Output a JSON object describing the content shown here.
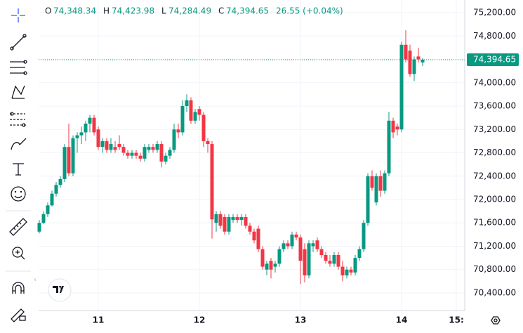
{
  "chart_data": {
    "type": "candlestick",
    "header": {
      "o": "O",
      "open": "74,348.34",
      "h": "H",
      "high": "74,423.98",
      "l": "L",
      "low": "74,284.49",
      "c": "C",
      "close": "74,394.65",
      "change": "26.55 (+0.04%)"
    },
    "categories": [
      null,
      null,
      null,
      null,
      null,
      null,
      null,
      null,
      null,
      null,
      null,
      null,
      null,
      null,
      "11",
      null,
      null,
      null,
      null,
      null,
      null,
      null,
      null,
      null,
      null,
      null,
      null,
      null,
      null,
      null,
      null,
      null,
      null,
      null,
      null,
      null,
      null,
      null,
      "12",
      null,
      null,
      null,
      null,
      null,
      null,
      null,
      null,
      null,
      null,
      null,
      null,
      null,
      null,
      null,
      null,
      null,
      null,
      null,
      null,
      null,
      null,
      null,
      "13",
      null,
      null,
      null,
      null,
      null,
      null,
      null,
      null,
      null,
      null,
      null,
      null,
      null,
      null,
      null,
      null,
      null,
      null,
      null,
      null,
      null,
      null,
      null,
      "14",
      null,
      null,
      null,
      null,
      null,
      null,
      null,
      null,
      null,
      null,
      null,
      null,
      "15:"
    ],
    "open": [
      71450,
      71600,
      71750,
      71900,
      72100,
      72250,
      72350,
      72900,
      72450,
      73050,
      73100,
      73150,
      73300,
      73400,
      73200,
      72900,
      73000,
      72850,
      72900,
      72950,
      72900,
      72800,
      72750,
      72800,
      72750,
      72700,
      72850,
      72900,
      72850,
      72950,
      72650,
      72750,
      72850,
      73200,
      73150,
      73600,
      73700,
      73350,
      73550,
      73450,
      73000,
      72950,
      71600,
      71750,
      71700,
      71450,
      71650,
      71700,
      71650,
      71700,
      71550,
      71450,
      71500,
      71150,
      70800,
      70950,
      70850,
      70900,
      71150,
      71250,
      71200,
      71400,
      71350,
      71150,
      70700,
      71200,
      71300,
      71150,
      71050,
      70950,
      70900,
      71050,
      70850,
      70700,
      70800,
      70750,
      71000,
      71150,
      71600,
      72400,
      71950,
      72400,
      72150,
      72450,
      73350,
      73250,
      73200,
      74650,
      74550,
      74150,
      74450,
      74348.34,
      null,
      null,
      null,
      null,
      null,
      null,
      null,
      null
    ],
    "high": [
      71650,
      71800,
      71950,
      72150,
      72300,
      72400,
      72950,
      73300,
      73100,
      73150,
      73250,
      73350,
      73450,
      73450,
      73250,
      73050,
      73050,
      73050,
      73000,
      73100,
      72950,
      72850,
      72850,
      72850,
      72800,
      72950,
      72950,
      72950,
      73000,
      73000,
      72800,
      72900,
      73300,
      73300,
      73700,
      73800,
      73750,
      73550,
      73600,
      73500,
      73050,
      73000,
      71800,
      71800,
      71750,
      71750,
      71750,
      71750,
      71750,
      71750,
      71600,
      71500,
      71550,
      71200,
      70950,
      71000,
      70950,
      71200,
      71300,
      71300,
      71450,
      71450,
      71400,
      71250,
      71300,
      71300,
      71350,
      71200,
      71100,
      71050,
      71100,
      71100,
      70950,
      70850,
      70850,
      71050,
      71200,
      71650,
      72450,
      72500,
      72450,
      72500,
      72500,
      73500,
      73400,
      73300,
      74700,
      74900,
      74650,
      74450,
      74600,
      74423.98,
      null,
      null,
      null,
      null,
      null,
      null,
      null,
      null
    ],
    "low": [
      71420,
      71580,
      71700,
      71880,
      72050,
      72200,
      72300,
      72400,
      72400,
      72800,
      72950,
      73000,
      73150,
      73100,
      72850,
      72800,
      72800,
      72800,
      72800,
      72850,
      72750,
      72700,
      72700,
      72700,
      72650,
      72650,
      72800,
      72800,
      72800,
      72550,
      72600,
      72700,
      72800,
      73050,
      73100,
      73500,
      73300,
      73300,
      73350,
      72900,
      72800,
      71330,
      71450,
      71500,
      71400,
      71400,
      71600,
      71600,
      71550,
      71500,
      71400,
      71250,
      71100,
      70800,
      70700,
      70650,
      70750,
      70850,
      71100,
      71150,
      71150,
      71300,
      70550,
      70580,
      70650,
      71100,
      71100,
      71000,
      70900,
      70850,
      70850,
      70800,
      70600,
      70650,
      70700,
      70700,
      70950,
      71100,
      71550,
      72150,
      71900,
      72050,
      72100,
      72400,
      73050,
      73100,
      73150,
      74350,
      74100,
      74030,
      74350,
      74284.49,
      null,
      null,
      null,
      null,
      null,
      null,
      null,
      null
    ],
    "close": [
      71600,
      71750,
      71900,
      72100,
      72250,
      72350,
      72900,
      72450,
      73050,
      73100,
      73150,
      73300,
      73400,
      73150,
      72900,
      73000,
      72850,
      72950,
      72850,
      72900,
      72800,
      72750,
      72800,
      72750,
      72700,
      72900,
      72900,
      72850,
      72950,
      72650,
      72750,
      72850,
      73200,
      73150,
      73600,
      73700,
      73350,
      73500,
      73450,
      73000,
      72950,
      71660,
      71750,
      71550,
      71450,
      71700,
      71700,
      71650,
      71700,
      71550,
      71450,
      71300,
      71150,
      70850,
      70900,
      70800,
      70900,
      71150,
      71250,
      71200,
      71400,
      71350,
      70950,
      70700,
      71250,
      71250,
      71150,
      71050,
      70950,
      70900,
      71050,
      70850,
      70700,
      70800,
      70750,
      71000,
      71150,
      71600,
      72400,
      72200,
      72400,
      72150,
      72450,
      73350,
      73150,
      73200,
      74650,
      74400,
      74150,
      74400,
      74400,
      74394.65,
      null,
      null,
      null,
      null,
      null,
      null,
      null,
      null
    ],
    "up_color": "#089981",
    "down_color": "#f23645",
    "last_price": {
      "value": 74394.65,
      "label": "74,394.65"
    },
    "ylim": [
      70099,
      75417
    ],
    "yticks": [
      {
        "value": 70400,
        "label": "70,400.00"
      },
      {
        "value": 70800,
        "label": "70,800.00"
      },
      {
        "value": 71200,
        "label": "71,200.00"
      },
      {
        "value": 71600,
        "label": "71,600.00"
      },
      {
        "value": 72000,
        "label": "72,000.00"
      },
      {
        "value": 72400,
        "label": "72,400.00"
      },
      {
        "value": 72800,
        "label": "72,800.00"
      },
      {
        "value": 73200,
        "label": "73,200.00"
      },
      {
        "value": 73600,
        "label": "73,600.00"
      },
      {
        "value": 74000,
        "label": "74,000.00"
      },
      {
        "value": 74400,
        "label": "74,400.00"
      },
      {
        "value": 74800,
        "label": "74,800.00"
      },
      {
        "value": 75200,
        "label": "75,200.00"
      }
    ],
    "grid": true
  }
}
